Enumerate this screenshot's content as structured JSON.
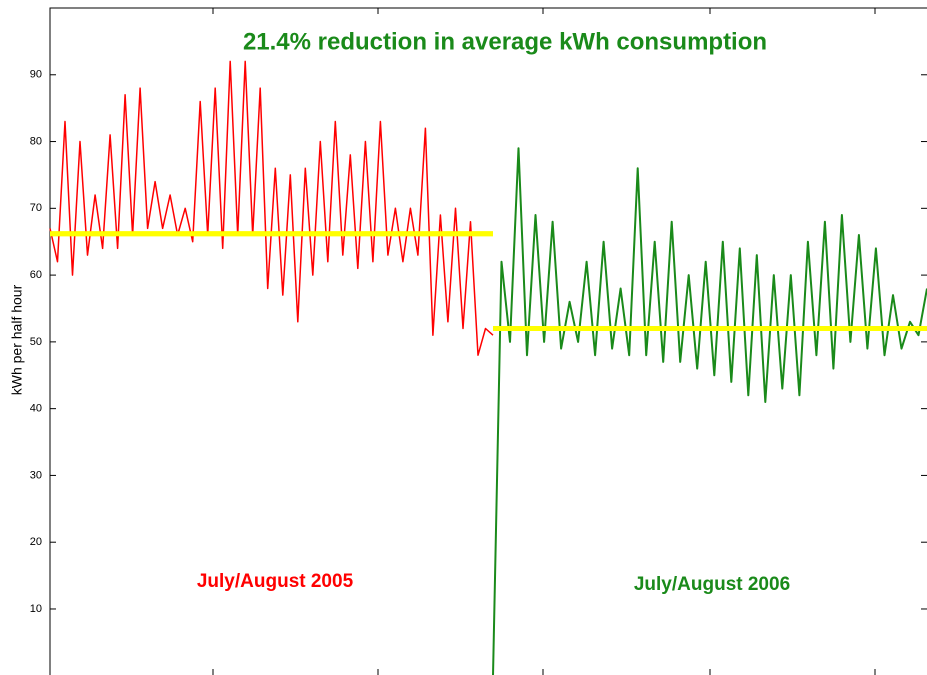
{
  "chart_data": {
    "type": "line",
    "title": "21.4% reduction in average kWh consumption",
    "title_color": "#1a8a1a",
    "ylabel": "kWh per half hour",
    "ylim": [
      0,
      100
    ],
    "yticks": [
      10,
      20,
      30,
      40,
      50,
      60,
      70,
      80,
      90
    ],
    "series": [
      {
        "name": "July/August 2005",
        "color": "#ff0000",
        "mean": 66.2,
        "mean_color": "#ffff00",
        "values": [
          67,
          62,
          83,
          60,
          80,
          63,
          72,
          64,
          81,
          64,
          87,
          66,
          88,
          67,
          74,
          67,
          72,
          66,
          70,
          65,
          86,
          66,
          88,
          64,
          92,
          66,
          92,
          66,
          88,
          58,
          76,
          57,
          75,
          53,
          76,
          60,
          80,
          62,
          83,
          63,
          78,
          61,
          80,
          62,
          83,
          63,
          70,
          62,
          70,
          63,
          82,
          51,
          69,
          53,
          70,
          52,
          68,
          48,
          52,
          51
        ]
      },
      {
        "name": "July/August 2006",
        "color": "#1a8a1a",
        "mean": 52.0,
        "mean_color": "#ffff00",
        "values": [
          0,
          62,
          50,
          79,
          48,
          69,
          50,
          68,
          49,
          56,
          50,
          62,
          48,
          65,
          49,
          58,
          48,
          76,
          48,
          65,
          47,
          68,
          47,
          60,
          46,
          62,
          45,
          65,
          44,
          64,
          42,
          63,
          41,
          60,
          43,
          60,
          42,
          65,
          48,
          68,
          46,
          69,
          50,
          66,
          49,
          64,
          48,
          57,
          49,
          53,
          51,
          58
        ]
      }
    ]
  }
}
